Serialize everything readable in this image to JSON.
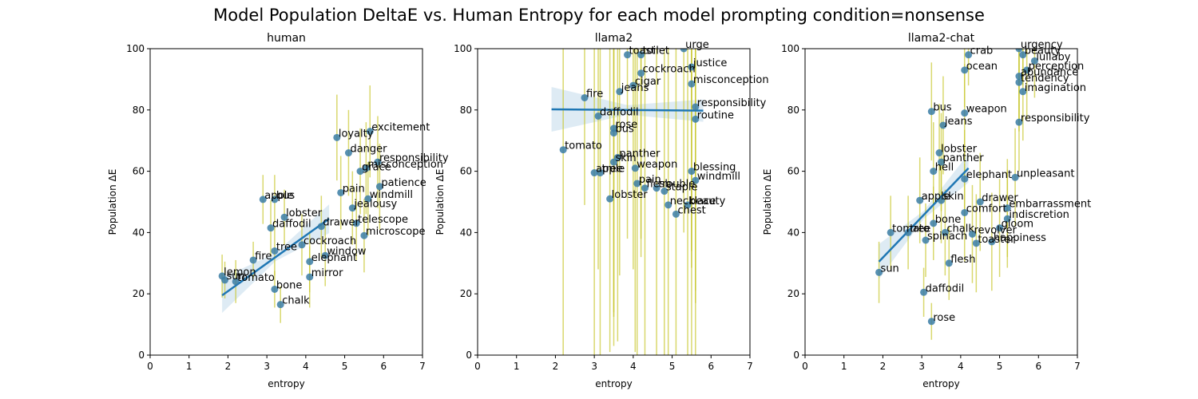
{
  "figure_title": "Model Population DeltaE vs. Human Entropy for each model prompting condition=nonsense",
  "chart_data": [
    {
      "type": "scatter",
      "title": "human",
      "xlabel": "entropy",
      "ylabel": "Population ΔE",
      "xlim": [
        0,
        7
      ],
      "ylim": [
        0,
        100
      ],
      "xticks": [
        0,
        1,
        2,
        3,
        4,
        5,
        6,
        7
      ],
      "yticks": [
        0,
        20,
        40,
        60,
        80,
        100
      ],
      "grid": false,
      "regression": {
        "x": [
          1.85,
          4.6
        ],
        "y": [
          19.5,
          44.5
        ]
      },
      "points": [
        {
          "label": "lemon",
          "x": 1.85,
          "y": 25.8,
          "err": 7
        },
        {
          "label": "sun",
          "x": 1.92,
          "y": 24.5,
          "err": 6
        },
        {
          "label": "tomato",
          "x": 2.2,
          "y": 24.0,
          "err": 7
        },
        {
          "label": "fire",
          "x": 2.65,
          "y": 31.0,
          "err": 6
        },
        {
          "label": "apple",
          "x": 2.9,
          "y": 50.8,
          "err": 8
        },
        {
          "label": "bus",
          "x": 3.2,
          "y": 50.8,
          "err": 8
        },
        {
          "label": "tree",
          "x": 3.2,
          "y": 34.0,
          "err": 8
        },
        {
          "label": "bone",
          "x": 3.2,
          "y": 21.5,
          "err": 6
        },
        {
          "label": "chalk",
          "x": 3.35,
          "y": 16.5,
          "err": 6
        },
        {
          "label": "daffodil",
          "x": 3.1,
          "y": 41.5,
          "err": 9
        },
        {
          "label": "lobster",
          "x": 3.45,
          "y": 45.0,
          "err": 9
        },
        {
          "label": "cockroach",
          "x": 3.9,
          "y": 36.0,
          "err": 10
        },
        {
          "label": "elephant",
          "x": 4.1,
          "y": 30.5,
          "err": 10
        },
        {
          "label": "mirror",
          "x": 4.1,
          "y": 25.5,
          "err": 10
        },
        {
          "label": "window",
          "x": 4.5,
          "y": 32.5,
          "err": 10
        },
        {
          "label": "telescope",
          "x": 5.3,
          "y": 43.0,
          "err": 12
        },
        {
          "label": "microscope",
          "x": 5.5,
          "y": 39.0,
          "err": 12
        },
        {
          "label": "drawer",
          "x": 4.4,
          "y": 42.0,
          "err": 10
        },
        {
          "label": "excitement",
          "x": 5.65,
          "y": 73.0,
          "err": 15
        },
        {
          "label": "responsibility",
          "x": 5.85,
          "y": 63.0,
          "err": 15
        },
        {
          "label": "misconception",
          "x": 5.55,
          "y": 61.0,
          "err": 15
        },
        {
          "label": "loyalty",
          "x": 4.8,
          "y": 71.0,
          "err": 14
        },
        {
          "label": "danger",
          "x": 5.1,
          "y": 66.0,
          "err": 14
        },
        {
          "label": "grace",
          "x": 5.4,
          "y": 60.0,
          "err": 14
        },
        {
          "label": "patience",
          "x": 5.9,
          "y": 55.0,
          "err": 14
        },
        {
          "label": "jealousy",
          "x": 5.2,
          "y": 48.0,
          "err": 12
        },
        {
          "label": "pain",
          "x": 4.9,
          "y": 53.0,
          "err": 12
        },
        {
          "label": "windmill",
          "x": 5.6,
          "y": 51.0,
          "err": 12
        }
      ]
    },
    {
      "type": "scatter",
      "title": "llama2",
      "xlabel": "entropy",
      "ylabel": "Population ΔE",
      "xlim": [
        0,
        7
      ],
      "ylim": [
        0,
        100
      ],
      "xticks": [
        0,
        1,
        2,
        3,
        4,
        5,
        6,
        7
      ],
      "yticks": [
        0,
        20,
        40,
        60,
        80,
        100
      ],
      "grid": false,
      "regression": {
        "x": [
          1.9,
          5.8
        ],
        "y": [
          80.2,
          79.8
        ]
      },
      "points": [
        {
          "label": "tomato",
          "x": 2.2,
          "y": 67.0,
          "err": 70
        },
        {
          "label": "fire",
          "x": 2.75,
          "y": 84.0,
          "err": 35
        },
        {
          "label": "daffodil",
          "x": 3.1,
          "y": 78.0,
          "err": 50
        },
        {
          "label": "rose",
          "x": 3.5,
          "y": 74.0,
          "err": 60
        },
        {
          "label": "bus",
          "x": 3.5,
          "y": 72.5,
          "err": 60
        },
        {
          "label": "apple",
          "x": 3.0,
          "y": 59.5,
          "err": 60
        },
        {
          "label": "tree",
          "x": 3.15,
          "y": 59.5,
          "err": 60
        },
        {
          "label": "skin",
          "x": 3.5,
          "y": 63.0,
          "err": 60
        },
        {
          "label": "lobster",
          "x": 3.4,
          "y": 51.0,
          "err": 50
        },
        {
          "label": "panther",
          "x": 3.6,
          "y": 64.5,
          "err": 60
        },
        {
          "label": "weapon",
          "x": 4.05,
          "y": 61.0,
          "err": 60
        },
        {
          "label": "pain",
          "x": 4.1,
          "y": 56.0,
          "err": 60
        },
        {
          "label": "flesh",
          "x": 4.3,
          "y": 54.5,
          "err": 60
        },
        {
          "label": "trouble",
          "x": 4.6,
          "y": 54.5,
          "err": 60
        },
        {
          "label": "staple",
          "x": 4.8,
          "y": 53.5,
          "err": 60
        },
        {
          "label": "toast",
          "x": 3.85,
          "y": 98.0,
          "err": 60
        },
        {
          "label": "toilet",
          "x": 4.2,
          "y": 98.0,
          "err": 60
        },
        {
          "label": "urge",
          "x": 5.3,
          "y": 100.0,
          "err": 60
        },
        {
          "label": "jeans",
          "x": 3.65,
          "y": 86.0,
          "err": 60
        },
        {
          "label": "cigar",
          "x": 4.0,
          "y": 88.0,
          "err": 60
        },
        {
          "label": "cockroach",
          "x": 4.2,
          "y": 92.0,
          "err": 60
        },
        {
          "label": "justice",
          "x": 5.5,
          "y": 94.0,
          "err": 60
        },
        {
          "label": "misconception",
          "x": 5.5,
          "y": 88.5,
          "err": 60
        },
        {
          "label": "responsibility",
          "x": 5.6,
          "y": 81.0,
          "err": 60
        },
        {
          "label": "routine",
          "x": 5.6,
          "y": 77.0,
          "err": 60
        },
        {
          "label": "blessing",
          "x": 5.5,
          "y": 60.0,
          "err": 60
        },
        {
          "label": "windmill",
          "x": 5.6,
          "y": 57.0,
          "err": 60
        },
        {
          "label": "necklace",
          "x": 4.9,
          "y": 49.0,
          "err": 60
        },
        {
          "label": "beauty",
          "x": 5.4,
          "y": 49.0,
          "err": 60
        },
        {
          "label": "chest",
          "x": 5.1,
          "y": 46.0,
          "err": 60
        }
      ]
    },
    {
      "type": "scatter",
      "title": "llama2-chat",
      "xlabel": "entropy",
      "ylabel": "Population ΔE",
      "xlim": [
        0,
        7
      ],
      "ylim": [
        0,
        100
      ],
      "xticks": [
        0,
        1,
        2,
        3,
        4,
        5,
        6,
        7
      ],
      "yticks": [
        0,
        20,
        40,
        60,
        80,
        100
      ],
      "grid": false,
      "regression": {
        "x": [
          1.9,
          4.2
        ],
        "y": [
          30.5,
          61.0
        ]
      },
      "points": [
        {
          "label": "sun",
          "x": 1.9,
          "y": 27.0,
          "err": 10
        },
        {
          "label": "tomato",
          "x": 2.2,
          "y": 40.0,
          "err": 12
        },
        {
          "label": "tree",
          "x": 2.65,
          "y": 40.0,
          "err": 12
        },
        {
          "label": "apple",
          "x": 2.95,
          "y": 50.5,
          "err": 14
        },
        {
          "label": "spinach",
          "x": 3.1,
          "y": 37.5,
          "err": 12
        },
        {
          "label": "daffodil",
          "x": 3.05,
          "y": 20.5,
          "err": 8
        },
        {
          "label": "rose",
          "x": 3.25,
          "y": 11.0,
          "err": 6
        },
        {
          "label": "bone",
          "x": 3.3,
          "y": 43.0,
          "err": 12
        },
        {
          "label": "chalk",
          "x": 3.6,
          "y": 40.0,
          "err": 14
        },
        {
          "label": "flesh",
          "x": 3.7,
          "y": 30.0,
          "err": 12
        },
        {
          "label": "skin",
          "x": 3.5,
          "y": 50.5,
          "err": 14
        },
        {
          "label": "hell",
          "x": 3.3,
          "y": 60.0,
          "err": 16
        },
        {
          "label": "panther",
          "x": 3.5,
          "y": 63.0,
          "err": 16
        },
        {
          "label": "lobster",
          "x": 3.45,
          "y": 66.0,
          "err": 16
        },
        {
          "label": "bus",
          "x": 3.25,
          "y": 79.5,
          "err": 16
        },
        {
          "label": "jeans",
          "x": 3.55,
          "y": 75.0,
          "err": 16
        },
        {
          "label": "ocean",
          "x": 4.1,
          "y": 93.0,
          "err": 12
        },
        {
          "label": "crab",
          "x": 4.2,
          "y": 98.0,
          "err": 10
        },
        {
          "label": "weapon",
          "x": 4.1,
          "y": 79.0,
          "err": 16
        },
        {
          "label": "elephant",
          "x": 4.1,
          "y": 57.5,
          "err": 16
        },
        {
          "label": "drawer",
          "x": 4.5,
          "y": 50.0,
          "err": 16
        },
        {
          "label": "comfort",
          "x": 4.1,
          "y": 46.5,
          "err": 16
        },
        {
          "label": "revolver",
          "x": 4.3,
          "y": 39.5,
          "err": 16
        },
        {
          "label": "toaster",
          "x": 4.4,
          "y": 36.5,
          "err": 16
        },
        {
          "label": "happiness",
          "x": 4.8,
          "y": 37.0,
          "err": 16
        },
        {
          "label": "gloom",
          "x": 5.0,
          "y": 41.5,
          "err": 16
        },
        {
          "label": "indiscretion",
          "x": 5.2,
          "y": 44.5,
          "err": 16
        },
        {
          "label": "embarrassment",
          "x": 5.2,
          "y": 48.0,
          "err": 16
        },
        {
          "label": "unpleasant",
          "x": 5.4,
          "y": 58.0,
          "err": 16
        },
        {
          "label": "responsibility",
          "x": 5.5,
          "y": 76.0,
          "err": 16
        },
        {
          "label": "imagination",
          "x": 5.6,
          "y": 86.0,
          "err": 16
        },
        {
          "label": "abundance",
          "x": 5.5,
          "y": 91.0,
          "err": 16
        },
        {
          "label": "tendency",
          "x": 5.5,
          "y": 89.0,
          "err": 16
        },
        {
          "label": "perception",
          "x": 5.7,
          "y": 93.0,
          "err": 16
        },
        {
          "label": "beauty",
          "x": 5.6,
          "y": 98.0,
          "err": 10
        },
        {
          "label": "urgency",
          "x": 5.5,
          "y": 100.0,
          "err": 10
        },
        {
          "label": "lullaby",
          "x": 5.9,
          "y": 96.0,
          "err": 12
        }
      ]
    }
  ]
}
